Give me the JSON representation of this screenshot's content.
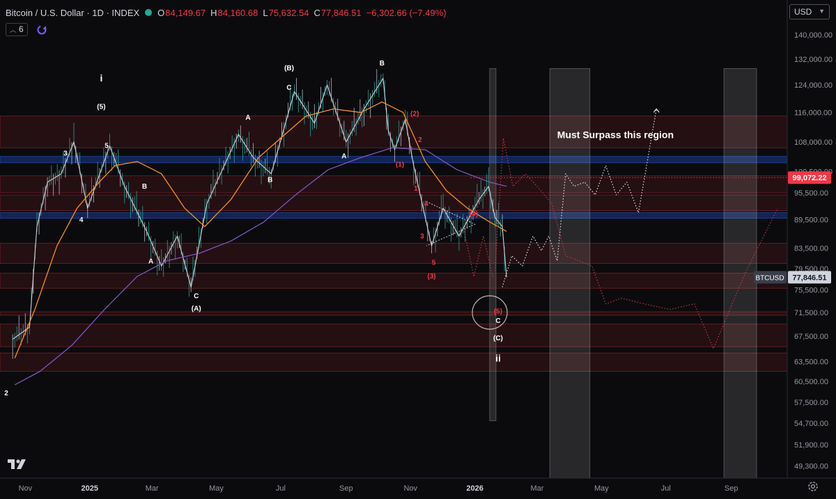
{
  "header": {
    "title": "Bitcoin / U.S. Dollar · 1D · INDEX",
    "open_label": "O",
    "open": "84,149.67",
    "high_label": "H",
    "high": "84,160.68",
    "low_label": "L",
    "low": "75,632.54",
    "close_label": "C",
    "close": "77,846.51",
    "change": "−6,302.66 (−7.49%)"
  },
  "indicator_count": "6",
  "currency_selector": "USD",
  "colors": {
    "background": "#0b0b0d",
    "ema_orange": "#f7931a",
    "sma_purple": "#7e57c2",
    "bear_red": "#f23645",
    "bull_green": "#26a69a",
    "zone_red": "#5a1a22",
    "zone_blue": "#1c3a8a"
  },
  "chart_data": {
    "type": "line",
    "title": "Bitcoin / U.S. Dollar · 1D · INDEX",
    "price_scale": "log",
    "ylim": [
      47500,
      150000
    ],
    "y_ticks": [
      "140,000.00",
      "132,000.00",
      "124,000.00",
      "116,000.00",
      "108,000.00",
      "100,500.00",
      "95,500.00",
      "89,500.00",
      "83,500.00",
      "79,500.00",
      "75,500.00",
      "71,500.00",
      "67,500.00",
      "63,500.00",
      "60,500.00",
      "57,500.00",
      "54,700.00",
      "51,900.00",
      "49,300.00"
    ],
    "x_ticks": [
      "Nov",
      "2025",
      "Mar",
      "May",
      "Jul",
      "Sep",
      "Nov",
      "2026",
      "Mar",
      "May",
      "Jul",
      "Sep"
    ],
    "last_price": {
      "label": "BTCUSD",
      "value": "77,846.51",
      "price": 77846.51
    },
    "level_marker": {
      "value": "99,072.22",
      "price": 99072.22
    },
    "series": [
      {
        "name": "",
        "role": "price",
        "x": [
          "2024-10-20",
          "2024-11-05",
          "2024-11-12",
          "2024-11-22",
          "2024-12-05",
          "2024-12-17",
          "2024-12-30",
          "2025-01-20",
          "2025-02-03",
          "2025-02-24",
          "2025-03-10",
          "2025-03-25",
          "2025-04-07",
          "2025-04-22",
          "2025-05-22",
          "2025-06-05",
          "2025-06-22",
          "2025-07-14",
          "2025-08-02",
          "2025-08-14",
          "2025-09-01",
          "2025-09-18",
          "2025-10-06",
          "2025-10-11",
          "2025-10-17",
          "2025-10-27",
          "2025-11-04",
          "2025-11-21",
          "2025-12-02",
          "2025-12-17",
          "2026-01-05",
          "2026-01-14",
          "2026-01-20",
          "2026-01-27",
          "2026-01-31"
        ],
        "values": [
          67000,
          69000,
          88000,
          98000,
          100000,
          108000,
          92000,
          107000,
          97000,
          87000,
          80000,
          86000,
          76000,
          93000,
          110000,
          104000,
          100000,
          122000,
          113000,
          124000,
          108000,
          117000,
          126000,
          111000,
          106000,
          114000,
          102000,
          84000,
          92000,
          86000,
          94000,
          97000,
          90000,
          88000,
          77846.51
        ]
      },
      {
        "name": "",
        "role": "moving-average-orange",
        "x": [
          "2024-10-22",
          "2024-11-10",
          "2024-12-01",
          "2024-12-20",
          "2025-01-10",
          "2025-01-25",
          "2025-02-15",
          "2025-03-10",
          "2025-04-01",
          "2025-04-20",
          "2025-05-15",
          "2025-06-10",
          "2025-07-05",
          "2025-07-25",
          "2025-08-20",
          "2025-09-15",
          "2025-10-05",
          "2025-10-25",
          "2025-11-15",
          "2025-12-05",
          "2025-12-25",
          "2026-01-15",
          "2026-01-31"
        ],
        "values": [
          64000,
          72000,
          84000,
          92000,
          98000,
          102000,
          103000,
          100000,
          92000,
          88000,
          94000,
          104000,
          110000,
          115000,
          117000,
          116000,
          119000,
          116000,
          103000,
          96000,
          92000,
          89000,
          87000
        ]
      },
      {
        "name": "",
        "role": "moving-average-purple",
        "x": [
          "2024-10-22",
          "2024-11-15",
          "2024-12-15",
          "2025-01-15",
          "2025-02-15",
          "2025-03-15",
          "2025-04-15",
          "2025-05-15",
          "2025-06-15",
          "2025-07-15",
          "2025-08-15",
          "2025-09-15",
          "2025-10-15",
          "2025-11-15",
          "2025-12-15",
          "2026-01-15",
          "2026-01-31"
        ],
        "values": [
          60000,
          62000,
          66000,
          72000,
          78000,
          81000,
          82500,
          85000,
          89000,
          95000,
          101000,
          104000,
          106500,
          106000,
          101000,
          98000,
          97000
        ]
      }
    ],
    "zones": [
      {
        "kind": "red",
        "low": 106500,
        "high": 115000
      },
      {
        "kind": "blue",
        "low": 102700,
        "high": 104300
      },
      {
        "kind": "red",
        "low": 95500,
        "high": 99500
      },
      {
        "kind": "red",
        "low": 91500,
        "high": 95000
      },
      {
        "kind": "blue",
        "low": 89800,
        "high": 91000
      },
      {
        "kind": "red",
        "low": 80500,
        "high": 84500
      },
      {
        "kind": "red",
        "low": 75800,
        "high": 78600
      },
      {
        "kind": "red",
        "low": 71000,
        "high": 71600
      },
      {
        "kind": "red",
        "low": 65800,
        "high": 69500
      },
      {
        "kind": "red",
        "low": 62000,
        "high": 64800
      }
    ],
    "time_windows": [
      {
        "from": "2026-01-15",
        "to": "2026-01-21",
        "high": 129000,
        "low": 55000
      },
      {
        "from": "2026-03-13",
        "to": "2026-04-20",
        "high": 129000,
        "low": 47500
      },
      {
        "from": "2026-08-25",
        "to": "2026-09-25",
        "high": 129000,
        "low": 47500
      }
    ],
    "projections": [
      {
        "style": "dotted-white",
        "x": [
          "2026-01-27",
          "2026-02-05",
          "2026-02-15",
          "2026-02-25",
          "2026-03-05",
          "2026-03-12",
          "2026-03-20",
          "2026-03-28",
          "2026-04-05",
          "2026-04-15",
          "2026-04-25",
          "2026-05-05",
          "2026-05-15",
          "2026-05-25",
          "2026-06-05",
          "2026-06-22"
        ],
        "values": [
          76000,
          82000,
          80000,
          86000,
          83000,
          86000,
          81000,
          100000,
          97000,
          98000,
          95000,
          102000,
          95000,
          98000,
          91000,
          117000
        ]
      },
      {
        "style": "dotted-red",
        "x": [
          "2026-01-20",
          "2026-01-28",
          "2026-02-06",
          "2026-02-18",
          "2026-03-01",
          "2026-03-15",
          "2026-03-28",
          "2026-04-10",
          "2026-04-22",
          "2026-05-05",
          "2026-05-20",
          "2026-06-10",
          "2026-07-05",
          "2026-07-28",
          "2026-08-15",
          "2026-09-15",
          "2026-10-15"
        ],
        "values": [
          79000,
          109000,
          97000,
          100000,
          97000,
          93000,
          82000,
          81000,
          80000,
          73000,
          74000,
          73000,
          72000,
          73000,
          65500,
          79000,
          92000
        ]
      },
      {
        "style": "dotted-red-short",
        "x": [
          "2025-12-22",
          "2025-12-31",
          "2026-01-09",
          "2026-01-18"
        ],
        "values": [
          87000,
          78000,
          86000,
          78000
        ]
      }
    ],
    "annotations": [
      {
        "text": "Must Surpass this region",
        "date": "2026-03-20",
        "price": 109000,
        "color": "#ffffff",
        "size": "large"
      },
      {
        "text": "i",
        "date": "2025-01-12",
        "price": 125000,
        "color": "#ffffff",
        "size": "roman"
      },
      {
        "text": "(5)",
        "date": "2025-01-12",
        "price": 117000,
        "color": "#ffffff"
      },
      {
        "text": "ii",
        "date": "2026-01-23",
        "price": 63500,
        "color": "#ffffff",
        "size": "roman"
      },
      {
        "text": "2",
        "date": "2024-10-14",
        "price": 58500,
        "color": "#ffffff"
      },
      {
        "text": "3",
        "date": "2024-12-09",
        "price": 104500,
        "color": "#ffffff"
      },
      {
        "text": "4",
        "date": "2024-12-24",
        "price": 89000,
        "color": "#ffffff"
      },
      {
        "text": "5",
        "date": "2025-01-17",
        "price": 106500,
        "color": "#ffffff"
      },
      {
        "text": "B",
        "date": "2025-02-22",
        "price": 96500,
        "color": "#ffffff"
      },
      {
        "text": "A",
        "date": "2025-02-28",
        "price": 80500,
        "color": "#ffffff"
      },
      {
        "text": "C",
        "date": "2025-04-12",
        "price": 74000,
        "color": "#ffffff"
      },
      {
        "text": "(A)",
        "date": "2025-04-12",
        "price": 71800,
        "color": "#ffffff"
      },
      {
        "text": "A",
        "date": "2025-05-31",
        "price": 114000,
        "color": "#ffffff"
      },
      {
        "text": "B",
        "date": "2025-06-21",
        "price": 98000,
        "color": "#ffffff"
      },
      {
        "text": "(B)",
        "date": "2025-07-09",
        "price": 128500,
        "color": "#ffffff"
      },
      {
        "text": "C",
        "date": "2025-07-09",
        "price": 122500,
        "color": "#ffffff"
      },
      {
        "text": "A",
        "date": "2025-08-30",
        "price": 103800,
        "color": "#ffffff"
      },
      {
        "text": "B",
        "date": "2025-10-05",
        "price": 130000,
        "color": "#ffffff"
      },
      {
        "text": "(1)",
        "date": "2025-10-22",
        "price": 101700,
        "color": "#f23645"
      },
      {
        "text": "(2)",
        "date": "2025-11-05",
        "price": 115000,
        "color": "#f23645"
      },
      {
        "text": "2",
        "date": "2025-11-10",
        "price": 108000,
        "color": "#f23645"
      },
      {
        "text": "1",
        "date": "2025-11-06",
        "price": 96000,
        "color": "#f23645"
      },
      {
        "text": "4",
        "date": "2025-11-16",
        "price": 92500,
        "color": "#f23645"
      },
      {
        "text": "3",
        "date": "2025-11-12",
        "price": 85500,
        "color": "#f23645"
      },
      {
        "text": "5",
        "date": "2025-11-23",
        "price": 80200,
        "color": "#f23645"
      },
      {
        "text": "(3)",
        "date": "2025-11-21",
        "price": 77600,
        "color": "#f23645"
      },
      {
        "text": "(4)",
        "date": "2025-12-31",
        "price": 90300,
        "color": "#f23645"
      },
      {
        "text": "(5)",
        "date": "2026-01-23",
        "price": 71300,
        "color": "#f23645"
      },
      {
        "text": "C",
        "date": "2026-01-23",
        "price": 69700,
        "color": "#ffffff"
      },
      {
        "text": "(C)",
        "date": "2026-01-23",
        "price": 66800,
        "color": "#ffffff"
      }
    ]
  }
}
